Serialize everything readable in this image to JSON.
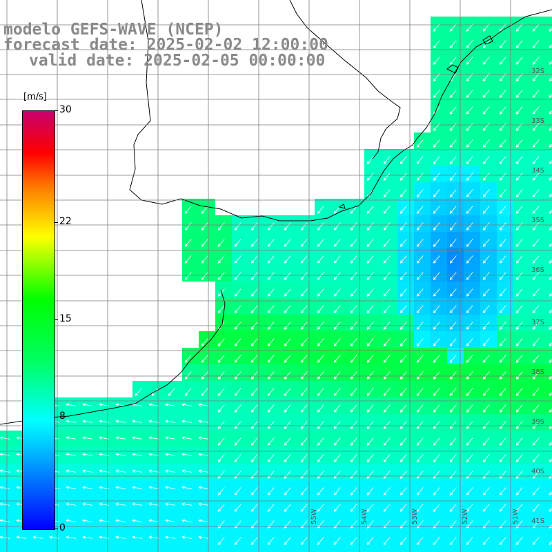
{
  "title": {
    "line1": "modelo GEFS-WAVE (NCEP)",
    "line2": "forecast date: 2025-02-02 12:00:00",
    "line3": "valid date: 2025-02-05 00:00:00"
  },
  "colorbar": {
    "unit": "[m/s]",
    "ticks": [
      {
        "label": "30",
        "value": 30
      },
      {
        "label": "22",
        "value": 22
      },
      {
        "label": "15",
        "value": 15
      },
      {
        "label": "8",
        "value": 8
      },
      {
        "label": "0",
        "value": 0
      }
    ],
    "min": 0,
    "max": 30,
    "colors": [
      "#0000ff",
      "#00c8ff",
      "#00ffff",
      "#00ff64",
      "#00ff00",
      "#ffff00",
      "#ff7800",
      "#ff0000",
      "#c8006e"
    ]
  },
  "grid": {
    "lat_labels": [
      "32S",
      "33S",
      "34S",
      "35S",
      "36S",
      "37S",
      "38S",
      "39S",
      "40S",
      "41S"
    ],
    "lon_labels": [
      "55W",
      "54W",
      "53W",
      "52W",
      "51W"
    ]
  },
  "colors": {
    "land": "#ffffff",
    "coast": "#000000",
    "grid": "#7a7a7a",
    "arrows": "#ffffff",
    "title": "#8a8a8a"
  }
}
